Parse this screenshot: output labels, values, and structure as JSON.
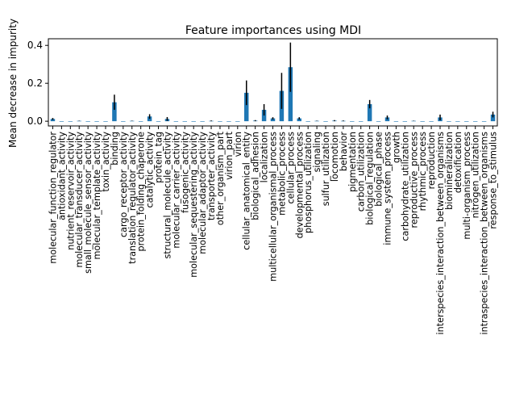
{
  "chart_data": {
    "type": "bar",
    "title": "Feature importances using MDI",
    "xlabel": "",
    "ylabel": "Mean decrease in impurity",
    "ylim": [
      -0.025,
      0.435
    ],
    "yticks": [
      0.0,
      0.2,
      0.4
    ],
    "ytick_labels": [
      "0.0",
      "0.2",
      "0.4"
    ],
    "grid": false,
    "legend": "none",
    "bar_color": "#1f77b4",
    "error_color": "#000000",
    "categories": [
      "molecular_function_regulator",
      "antioxidant_activity",
      "nutrient_reservoir_activity",
      "molecular_transducer_activity",
      "small_molecule_sensor_activity",
      "molecular_template_activity",
      "toxin_activity",
      "binding",
      "cargo_receptor_activity",
      "translation_regulator_activity",
      "protein_folding_chaperone",
      "catalytic_activity",
      "protein_tag",
      "structural_molecule_activity",
      "molecular_carrier_activity",
      "fusogenic_activity",
      "molecular_sequestering_activity",
      "molecular_adaptor_activity",
      "transporter_activity",
      "other_organism_part",
      "virion_part",
      "virion",
      "cellular_anatomical_entity",
      "biological_adhesion",
      "localization",
      "multicellular_organismal_process",
      "metabolic_process",
      "cellular_process",
      "developmental_process",
      "phosphorus_utilization",
      "signaling",
      "sulfur_utilization",
      "locomotion",
      "behavior",
      "pigmentation",
      "carbon_utilization",
      "biological_regulation",
      "biological_phase",
      "immune_system_process",
      "growth",
      "carbohydrate_utilization",
      "reproductive_process",
      "rhythmic_process",
      "reproduction",
      "interspecies_interaction_between_organisms",
      "biomineralization",
      "detoxification",
      "multi-organism_process",
      "nitrogen_utilization",
      "intraspecies_interaction_between_organisms",
      "response_to_stimulus"
    ],
    "values": [
      0.012,
      0.0,
      0.0,
      0.002,
      0.0,
      0.0,
      0.0,
      0.1,
      0.0,
      0.002,
      0.0,
      0.025,
      0.0,
      0.012,
      0.0,
      0.0,
      0.0,
      0.0,
      0.002,
      0.0,
      0.0,
      0.0,
      0.15,
      0.003,
      0.06,
      0.015,
      0.16,
      0.285,
      0.015,
      0.0,
      0.002,
      0.0,
      0.003,
      0.002,
      0.0,
      0.0,
      0.09,
      0.0,
      0.02,
      0.0,
      0.0,
      0.002,
      0.0,
      0.0,
      0.02,
      0.0,
      0.0,
      0.0,
      0.0,
      0.0,
      0.035
    ],
    "errors": [
      0.005,
      0.0,
      0.0,
      0.001,
      0.0,
      0.0,
      0.0,
      0.04,
      0.0,
      0.001,
      0.0,
      0.012,
      0.0,
      0.01,
      0.0,
      0.0,
      0.0,
      0.0,
      0.002,
      0.0,
      0.0,
      0.0,
      0.065,
      0.003,
      0.03,
      0.006,
      0.095,
      0.13,
      0.006,
      0.0,
      0.001,
      0.0,
      0.003,
      0.002,
      0.0,
      0.0,
      0.022,
      0.0,
      0.01,
      0.0,
      0.0,
      0.001,
      0.0,
      0.0,
      0.015,
      0.0,
      0.0,
      0.0,
      0.0,
      0.0,
      0.015
    ]
  }
}
